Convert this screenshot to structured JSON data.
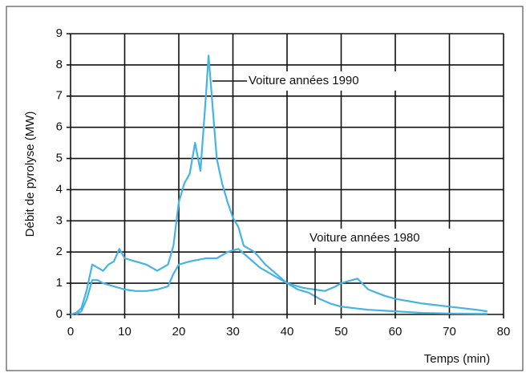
{
  "chart_data": {
    "type": "line",
    "xlabel": "Temps (min)",
    "ylabel": "Débit de pyrolyse (MW)",
    "xlim": [
      0,
      80
    ],
    "xticks": [
      0,
      10,
      20,
      30,
      40,
      50,
      60,
      70,
      80
    ],
    "ylim": [
      0,
      9
    ],
    "yticks": [
      0,
      1,
      2,
      3,
      4,
      5,
      6,
      7,
      8,
      9
    ],
    "grid": true,
    "annotations": [
      "Voiture années 1990",
      "Voiture années 1980"
    ],
    "series": [
      {
        "color": "#45b3e3",
        "x": [
          0,
          1,
          2,
          3,
          4,
          5,
          6,
          7,
          8,
          9,
          10,
          12,
          14,
          16,
          18,
          19,
          20,
          21,
          22,
          23,
          24,
          25,
          25.5,
          26,
          27,
          28,
          29,
          30,
          31,
          32,
          33,
          34,
          36,
          38,
          40,
          42,
          44,
          46,
          48,
          50,
          55,
          60,
          65,
          70,
          75,
          77
        ],
        "values": [
          0,
          0.05,
          0.2,
          0.8,
          1.6,
          1.5,
          1.4,
          1.6,
          1.7,
          2.1,
          1.8,
          1.7,
          1.6,
          1.4,
          1.6,
          2.2,
          3.6,
          4.2,
          4.5,
          5.5,
          4.6,
          7,
          8.3,
          7.2,
          5,
          4.2,
          3.6,
          3.1,
          2.8,
          2.2,
          2.1,
          2,
          1.6,
          1.3,
          1,
          0.8,
          0.7,
          0.5,
          0.35,
          0.25,
          0.15,
          0.1,
          0.05,
          0.03,
          0.02,
          0.02
        ]
      },
      {
        "color": "#45b3e3",
        "x": [
          1,
          2,
          3,
          4,
          5,
          6,
          8,
          10,
          12,
          14,
          16,
          18,
          19,
          20,
          22,
          25,
          27,
          29,
          31,
          33,
          35,
          38,
          40,
          43,
          45,
          47,
          49,
          50,
          52,
          53,
          55,
          58,
          60,
          65,
          70,
          75,
          77
        ],
        "values": [
          0,
          0.1,
          0.5,
          1.1,
          1.1,
          1,
          0.9,
          0.8,
          0.75,
          0.75,
          0.8,
          0.9,
          1.3,
          1.6,
          1.7,
          1.8,
          1.8,
          2,
          2.1,
          1.8,
          1.5,
          1.2,
          1,
          0.85,
          0.8,
          0.75,
          0.9,
          1,
          1.1,
          1.15,
          0.8,
          0.6,
          0.5,
          0.35,
          0.25,
          0.15,
          0.1
        ]
      }
    ]
  }
}
